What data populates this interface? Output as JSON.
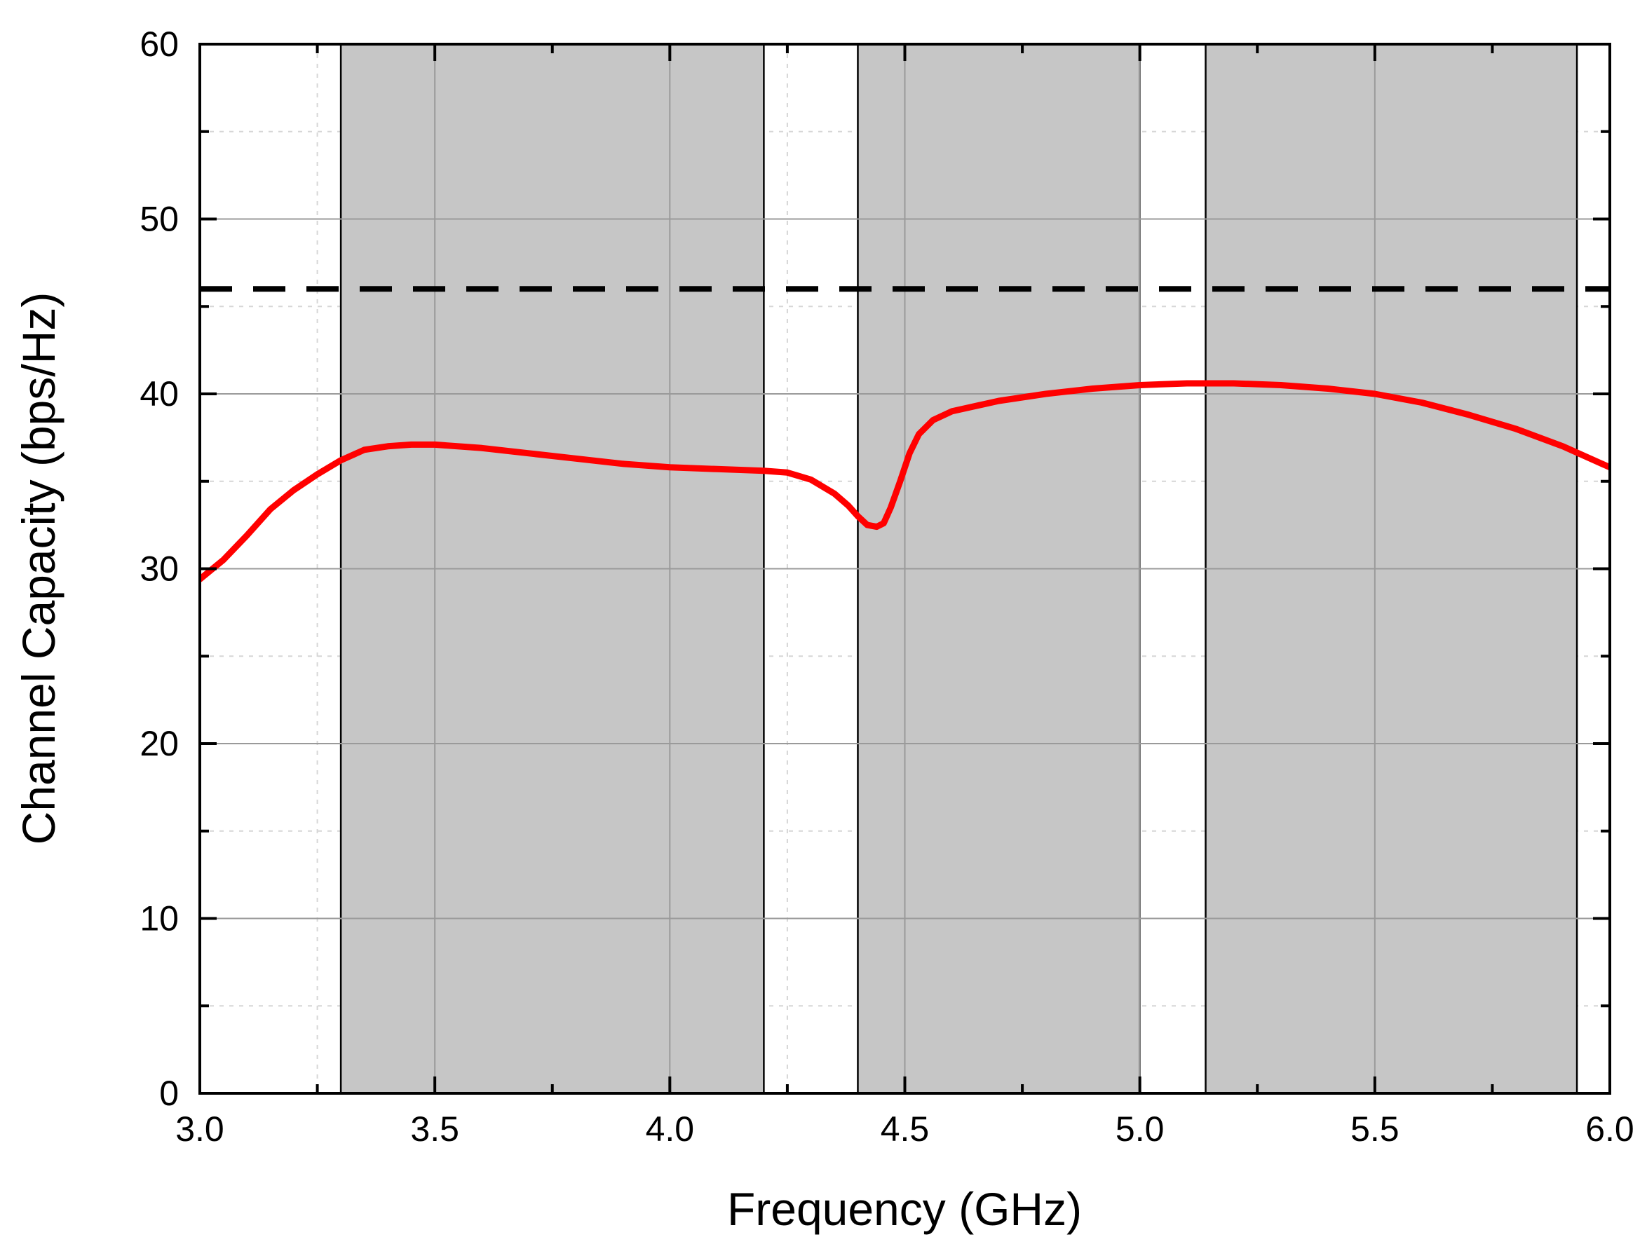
{
  "chart_data": {
    "type": "line",
    "title": "",
    "xlabel": "Frequency (GHz)",
    "ylabel": "Channel Capacity (bps/Hz)",
    "xlim": [
      3.0,
      6.0
    ],
    "ylim": [
      0,
      60
    ],
    "x_ticks": [
      "3.0",
      "3.5",
      "4.0",
      "4.5",
      "5.0",
      "5.5",
      "6.0"
    ],
    "y_ticks": [
      "0",
      "10",
      "20",
      "30",
      "40",
      "50",
      "60"
    ],
    "grid": true,
    "legend": "none",
    "shaded_bands": [
      {
        "x_start": 3.3,
        "x_end": 4.2
      },
      {
        "x_start": 4.4,
        "x_end": 5.0
      },
      {
        "x_start": 5.14,
        "x_end": 5.93
      }
    ],
    "reference_line": {
      "y": 46,
      "style": "dashed",
      "color": "#000000"
    },
    "series": [
      {
        "color": "#ff0000",
        "x": [
          3.0,
          3.05,
          3.1,
          3.15,
          3.2,
          3.25,
          3.3,
          3.35,
          3.4,
          3.45,
          3.5,
          3.6,
          3.7,
          3.8,
          3.9,
          4.0,
          4.1,
          4.2,
          4.25,
          4.3,
          4.35,
          4.38,
          4.4,
          4.42,
          4.44,
          4.455,
          4.47,
          4.49,
          4.51,
          4.53,
          4.56,
          4.6,
          4.7,
          4.8,
          4.9,
          5.0,
          5.1,
          5.2,
          5.3,
          5.4,
          5.5,
          5.6,
          5.7,
          5.8,
          5.9,
          6.0
        ],
        "values": [
          29.4,
          30.5,
          31.9,
          33.4,
          34.5,
          35.4,
          36.2,
          36.8,
          37.0,
          37.1,
          37.1,
          36.9,
          36.6,
          36.3,
          36.0,
          35.8,
          35.7,
          35.6,
          35.5,
          35.1,
          34.3,
          33.6,
          33.0,
          32.5,
          32.4,
          32.6,
          33.5,
          35.0,
          36.6,
          37.7,
          38.5,
          39.0,
          39.6,
          40.0,
          40.3,
          40.5,
          40.6,
          40.6,
          40.5,
          40.3,
          40.0,
          39.5,
          38.8,
          38.0,
          37.0,
          35.8
        ]
      }
    ],
    "colors": {
      "band_fill": "#c6c6c6",
      "major_grid": "#9a9a9a",
      "minor_grid": "#d6d6d6",
      "axis": "#000000"
    }
  }
}
